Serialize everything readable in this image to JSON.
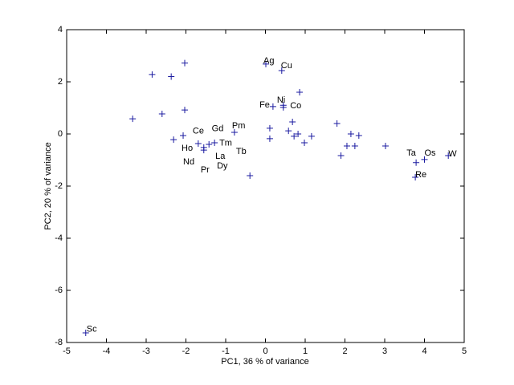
{
  "chart_data": {
    "type": "scatter",
    "xlabel": "PC1, 36 % of variance",
    "ylabel": "PC2, 20 % of variance",
    "xlim": [
      -5,
      5
    ],
    "ylim": [
      -8,
      4
    ],
    "xticks": [
      -5,
      -4,
      -3,
      -2,
      -1,
      0,
      1,
      2,
      3,
      4,
      5
    ],
    "yticks": [
      -8,
      -6,
      -4,
      -2,
      0,
      2,
      4
    ],
    "color": "#1a1aa0",
    "x": [
      -2.85,
      -2.37,
      -2.03,
      -3.34,
      -2.6,
      -2.03,
      -2.31,
      -2.07,
      -1.69,
      -1.55,
      -1.42,
      -1.28,
      -1.55,
      -0.78,
      -0.39,
      0.01,
      0.41,
      0.86,
      0.19,
      0.45,
      0.45,
      0.11,
      0.11,
      0.68,
      0.58,
      0.72,
      0.82,
      0.98,
      1.16,
      1.8,
      1.9,
      2.15,
      2.05,
      2.25,
      2.35,
      3.02,
      3.79,
      4.0,
      3.77,
      4.6,
      -4.52
    ],
    "values": [
      2.28,
      2.2,
      2.72,
      0.58,
      0.77,
      0.92,
      -0.22,
      -0.06,
      -0.37,
      -0.52,
      -0.4,
      -0.34,
      -0.62,
      0.06,
      -1.6,
      2.68,
      2.43,
      1.6,
      1.05,
      1.1,
      1.02,
      0.22,
      -0.18,
      0.46,
      0.12,
      -0.09,
      0.0,
      -0.34,
      -0.09,
      0.4,
      -0.83,
      0.0,
      -0.46,
      -0.46,
      -0.06,
      -0.46,
      -1.1,
      -0.98,
      -1.66,
      -0.83,
      -7.63
    ],
    "annotations": [
      {
        "text": "Ag",
        "x": -0.05,
        "y": 2.8
      },
      {
        "text": "Cu",
        "x": 0.39,
        "y": 2.62
      },
      {
        "text": "Fe",
        "x": -0.15,
        "y": 1.1
      },
      {
        "text": "Ni",
        "x": 0.29,
        "y": 1.29
      },
      {
        "text": "Co",
        "x": 0.62,
        "y": 1.08
      },
      {
        "text": "Ce",
        "x": -1.83,
        "y": 0.1
      },
      {
        "text": "Gd",
        "x": -1.35,
        "y": 0.2
      },
      {
        "text": "Pm",
        "x": -0.84,
        "y": 0.3
      },
      {
        "text": "Tm",
        "x": -1.16,
        "y": -0.35
      },
      {
        "text": "Ho",
        "x": -2.11,
        "y": -0.55
      },
      {
        "text": "La",
        "x": -1.26,
        "y": -0.86
      },
      {
        "text": "Tb",
        "x": -0.74,
        "y": -0.68
      },
      {
        "text": "Nd",
        "x": -2.07,
        "y": -1.08
      },
      {
        "text": "Pr",
        "x": -1.63,
        "y": -1.38
      },
      {
        "text": "Dy",
        "x": -1.22,
        "y": -1.23
      },
      {
        "text": "Ta",
        "x": 3.55,
        "y": -0.74
      },
      {
        "text": "Os",
        "x": 4.0,
        "y": -0.74
      },
      {
        "text": "W",
        "x": 4.6,
        "y": -0.77
      },
      {
        "text": "Re",
        "x": 3.77,
        "y": -1.57
      },
      {
        "text": "Sc",
        "x": -4.5,
        "y": -7.5
      }
    ]
  }
}
